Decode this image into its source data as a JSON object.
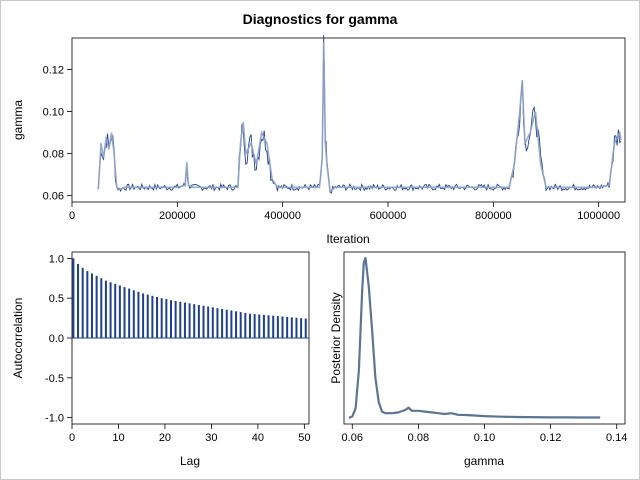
{
  "title": "Diagnostics for gamma",
  "colors": {
    "trace": "#1f3f8f",
    "trace_mean": "#8fa2c8",
    "acf": "#1f3f8f",
    "density": "#5b7596",
    "frame": "#c8c8c8"
  },
  "chart_data": [
    {
      "id": "trace",
      "type": "line",
      "xlabel": "Iteration",
      "ylabel": "gamma",
      "xlim": [
        0,
        1050000
      ],
      "ylim": [
        0.057,
        0.135
      ],
      "xticks": [
        "0",
        "200000",
        "400000",
        "600000",
        "800000",
        "1000000"
      ],
      "xtick_values": [
        0,
        200000,
        400000,
        600000,
        800000,
        1000000
      ],
      "yticks": [
        "0.06",
        "0.08",
        "0.10",
        "0.12"
      ],
      "ytick_values": [
        0.06,
        0.08,
        0.1,
        0.12
      ],
      "series": [
        {
          "x": [
            50000,
            55000,
            60000,
            65000,
            70000,
            75000,
            80000,
            85000,
            90000,
            100000,
            150000,
            200000,
            215000,
            218000,
            221000,
            230000,
            300000,
            315000,
            320000,
            325000,
            330000,
            340000,
            350000,
            360000,
            370000,
            380000,
            390000,
            400000,
            450000,
            470000,
            475000,
            478000,
            481000,
            484000,
            490000,
            500000,
            550000,
            600000,
            650000,
            700000,
            750000,
            800000,
            830000,
            840000,
            850000,
            855000,
            860000,
            870000,
            880000,
            890000,
            900000,
            950000,
            1000000,
            1020000,
            1030000,
            1040000,
            1045000
          ],
          "y": [
            0.063,
            0.085,
            0.078,
            0.088,
            0.082,
            0.09,
            0.08,
            0.064,
            0.063,
            0.064,
            0.064,
            0.064,
            0.065,
            0.076,
            0.065,
            0.064,
            0.064,
            0.064,
            0.085,
            0.095,
            0.08,
            0.085,
            0.075,
            0.09,
            0.085,
            0.068,
            0.064,
            0.064,
            0.064,
            0.064,
            0.078,
            0.133,
            0.085,
            0.075,
            0.062,
            0.064,
            0.064,
            0.064,
            0.064,
            0.064,
            0.064,
            0.064,
            0.064,
            0.075,
            0.1,
            0.115,
            0.085,
            0.09,
            0.1,
            0.075,
            0.064,
            0.064,
            0.064,
            0.065,
            0.085,
            0.09,
            0.083
          ]
        }
      ]
    },
    {
      "id": "autocorrelation",
      "type": "bar",
      "xlabel": "Lag",
      "ylabel": "Autocorrelation",
      "xlim": [
        0,
        51
      ],
      "ylim": [
        -1.08,
        1.08
      ],
      "xticks": [
        "0",
        "10",
        "20",
        "30",
        "40",
        "50"
      ],
      "xtick_values": [
        0,
        10,
        20,
        30,
        40,
        50
      ],
      "yticks": [
        "1.0",
        "0.5",
        "0.0",
        "-0.5",
        "-1.0"
      ],
      "ytick_values": [
        1.0,
        0.5,
        0.0,
        -0.5,
        -1.0
      ],
      "x": [
        0,
        1,
        2,
        3,
        4,
        5,
        6,
        7,
        8,
        9,
        10,
        11,
        12,
        13,
        14,
        15,
        16,
        17,
        18,
        19,
        20,
        21,
        22,
        23,
        24,
        25,
        26,
        27,
        28,
        29,
        30,
        31,
        32,
        33,
        34,
        35,
        36,
        37,
        38,
        39,
        40,
        41,
        42,
        43,
        44,
        45,
        46,
        47,
        48,
        49,
        50
      ],
      "values": [
        1.0,
        0.93,
        0.88,
        0.84,
        0.81,
        0.78,
        0.75,
        0.72,
        0.7,
        0.68,
        0.66,
        0.64,
        0.62,
        0.6,
        0.58,
        0.56,
        0.545,
        0.53,
        0.515,
        0.5,
        0.49,
        0.475,
        0.465,
        0.455,
        0.445,
        0.435,
        0.425,
        0.415,
        0.405,
        0.395,
        0.385,
        0.375,
        0.365,
        0.355,
        0.345,
        0.335,
        0.325,
        0.315,
        0.305,
        0.3,
        0.295,
        0.29,
        0.285,
        0.28,
        0.275,
        0.27,
        0.265,
        0.26,
        0.255,
        0.25,
        0.245
      ]
    },
    {
      "id": "density",
      "type": "line",
      "xlabel": "gamma",
      "ylabel": "Posterior Density",
      "xlim": [
        0.0575,
        0.1425
      ],
      "ylim": [
        0,
        1.0
      ],
      "xticks": [
        "0.06",
        "0.08",
        "0.10",
        "0.12",
        "0.14"
      ],
      "xtick_values": [
        0.06,
        0.08,
        0.1,
        0.12,
        0.14
      ],
      "yticks": [],
      "x": [
        0.059,
        0.06,
        0.061,
        0.062,
        0.063,
        0.0635,
        0.064,
        0.065,
        0.066,
        0.067,
        0.068,
        0.069,
        0.07,
        0.072,
        0.074,
        0.076,
        0.077,
        0.078,
        0.08,
        0.082,
        0.084,
        0.086,
        0.088,
        0.09,
        0.092,
        0.095,
        0.1,
        0.105,
        0.11,
        0.12,
        0.125,
        0.13,
        0.135
      ],
      "values": [
        0.0,
        0.01,
        0.06,
        0.3,
        0.8,
        0.97,
        1.0,
        0.82,
        0.55,
        0.25,
        0.1,
        0.04,
        0.03,
        0.03,
        0.035,
        0.05,
        0.065,
        0.045,
        0.045,
        0.04,
        0.035,
        0.03,
        0.025,
        0.03,
        0.02,
        0.018,
        0.012,
        0.008,
        0.006,
        0.004,
        0.004,
        0.003,
        0.003
      ]
    }
  ]
}
